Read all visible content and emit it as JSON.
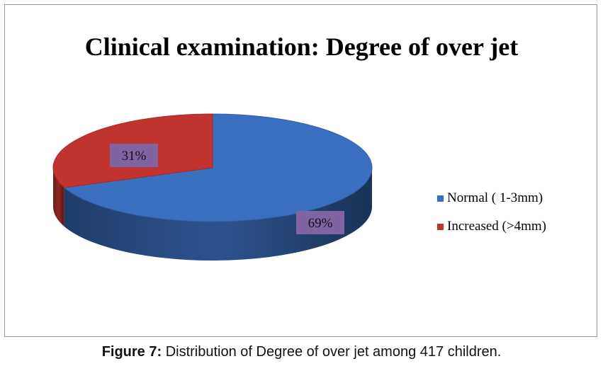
{
  "chart_data": {
    "type": "pie",
    "title": "Clinical examination: Degree of over jet",
    "slices": [
      {
        "name": "Normal ( 1-3mm)",
        "value": 69,
        "label": "69%",
        "color": "#3a6fc0"
      },
      {
        "name": "Increased (>4mm)",
        "value": 31,
        "label": "31%",
        "color": "#c0332f"
      }
    ],
    "legend_position": "right",
    "label_background": "#8064a2"
  },
  "caption": {
    "prefix": "Figure 7:",
    "text": " Distribution of Degree of over jet among 417 children."
  }
}
